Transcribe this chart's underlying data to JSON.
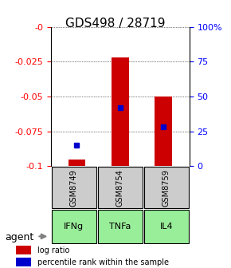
{
  "title": "GDS498 / 28719",
  "samples": [
    "GSM8749",
    "GSM8754",
    "GSM8759"
  ],
  "agents": [
    "IFNg",
    "TNFa",
    "IL4"
  ],
  "log_ratios": [
    -0.095,
    -0.022,
    -0.05
  ],
  "bar_bottoms": [
    -0.1,
    -0.1,
    -0.1
  ],
  "percentile_ranks": [
    0.15,
    0.42,
    0.28
  ],
  "ylim_left": [
    -0.1,
    0.0
  ],
  "ylim_right": [
    0.0,
    1.0
  ],
  "yticks_left": [
    0.0,
    -0.025,
    -0.05,
    -0.075,
    -0.1
  ],
  "yticks_right": [
    0.0,
    0.25,
    0.5,
    0.75,
    1.0
  ],
  "ytick_labels_left": [
    "-0",
    "-0.025",
    "-0.05",
    "-0.075",
    "-0.1"
  ],
  "ytick_labels_right": [
    "0",
    "25",
    "50",
    "75",
    "100%"
  ],
  "bar_color": "#cc0000",
  "percentile_color": "#0000cc",
  "sample_bg_color": "#cccccc",
  "agent_bg_color": "#99ee99",
  "legend_log_ratio": "log ratio",
  "legend_percentile": "percentile rank within the sample",
  "agent_label": "agent",
  "bar_width": 0.4
}
